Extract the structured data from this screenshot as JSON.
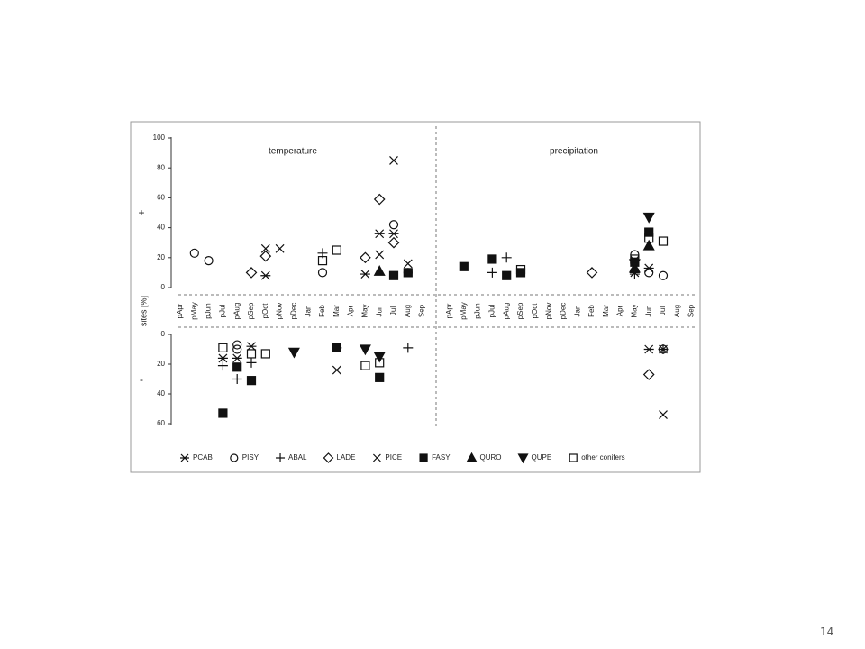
{
  "chart_data": {
    "type": "scatter",
    "ylabel": "sites [%]",
    "categories": [
      "pApr",
      "pMay",
      "pJun",
      "pJul",
      "pAug",
      "pSep",
      "pOct",
      "pNov",
      "pDec",
      "Jan",
      "Feb",
      "Mar",
      "Apr",
      "May",
      "Jun",
      "Jul",
      "Aug",
      "Sep"
    ],
    "panels": [
      {
        "title": "temperature"
      },
      {
        "title": "precipitation"
      }
    ],
    "halves": [
      {
        "label": "+",
        "ylim": [
          0,
          100
        ],
        "yticks": [
          0,
          20,
          40,
          60,
          80,
          100
        ]
      },
      {
        "label": "-",
        "ylim": [
          0,
          60
        ],
        "yticks": [
          0,
          20,
          40,
          60
        ]
      }
    ],
    "series": [
      {
        "name": "PCAB",
        "marker": "asterisk",
        "points": [
          {
            "panel": 0,
            "half": 0,
            "x": "pOct",
            "y": 8
          },
          {
            "panel": 0,
            "half": 0,
            "x": "May",
            "y": 9
          },
          {
            "panel": 0,
            "half": 0,
            "x": "Jun",
            "y": 36
          },
          {
            "panel": 0,
            "half": 0,
            "x": "Jul",
            "y": 36
          },
          {
            "panel": 0,
            "half": 1,
            "x": "pJul",
            "y": 16
          },
          {
            "panel": 0,
            "half": 1,
            "x": "pAug",
            "y": 16
          },
          {
            "panel": 0,
            "half": 1,
            "x": "pSep",
            "y": 8
          },
          {
            "panel": 0,
            "half": 1,
            "x": "Mar",
            "y": 9
          },
          {
            "panel": 1,
            "half": 0,
            "x": "May",
            "y": 10
          },
          {
            "panel": 1,
            "half": 0,
            "x": "Jun",
            "y": 13
          },
          {
            "panel": 1,
            "half": 1,
            "x": "Jun",
            "y": 10
          },
          {
            "panel": 1,
            "half": 1,
            "x": "Jul",
            "y": 10
          }
        ]
      },
      {
        "name": "PISY",
        "marker": "circle",
        "points": [
          {
            "panel": 0,
            "half": 0,
            "x": "pMay",
            "y": 23
          },
          {
            "panel": 0,
            "half": 0,
            "x": "pJun",
            "y": 18
          },
          {
            "panel": 0,
            "half": 0,
            "x": "Feb",
            "y": 10
          },
          {
            "panel": 0,
            "half": 0,
            "x": "Jul",
            "y": 42
          },
          {
            "panel": 0,
            "half": 0,
            "x": "Aug",
            "y": 10
          },
          {
            "panel": 0,
            "half": 1,
            "x": "pAug",
            "y": 7
          },
          {
            "panel": 0,
            "half": 1,
            "x": "pAug",
            "y": 10
          },
          {
            "panel": 1,
            "half": 0,
            "x": "May",
            "y": 22
          },
          {
            "panel": 1,
            "half": 0,
            "x": "Jun",
            "y": 10
          },
          {
            "panel": 1,
            "half": 0,
            "x": "Jul",
            "y": 8
          },
          {
            "panel": 1,
            "half": 1,
            "x": "Jul",
            "y": 10
          }
        ]
      },
      {
        "name": "ABAL",
        "marker": "plus",
        "points": [
          {
            "panel": 0,
            "half": 0,
            "x": "Feb",
            "y": 23
          },
          {
            "panel": 0,
            "half": 1,
            "x": "pJul",
            "y": 21
          },
          {
            "panel": 0,
            "half": 1,
            "x": "pAug",
            "y": 30
          },
          {
            "panel": 0,
            "half": 1,
            "x": "pSep",
            "y": 19
          },
          {
            "panel": 0,
            "half": 1,
            "x": "Aug",
            "y": 9
          },
          {
            "panel": 1,
            "half": 0,
            "x": "pJul",
            "y": 10
          },
          {
            "panel": 1,
            "half": 0,
            "x": "pAug",
            "y": 20
          },
          {
            "panel": 1,
            "half": 0,
            "x": "May",
            "y": 9
          },
          {
            "panel": 1,
            "half": 1,
            "x": "Jul",
            "y": 10
          }
        ]
      },
      {
        "name": "LADE",
        "marker": "diamond",
        "points": [
          {
            "panel": 0,
            "half": 0,
            "x": "pSep",
            "y": 10
          },
          {
            "panel": 0,
            "half": 0,
            "x": "pOct",
            "y": 21
          },
          {
            "panel": 0,
            "half": 0,
            "x": "May",
            "y": 20
          },
          {
            "panel": 0,
            "half": 0,
            "x": "Jun",
            "y": 59
          },
          {
            "panel": 0,
            "half": 0,
            "x": "Jul",
            "y": 30
          },
          {
            "panel": 1,
            "half": 0,
            "x": "Feb",
            "y": 10
          },
          {
            "panel": 1,
            "half": 1,
            "x": "Jun",
            "y": 27
          }
        ]
      },
      {
        "name": "PICE",
        "marker": "cross",
        "points": [
          {
            "panel": 0,
            "half": 0,
            "x": "pOct",
            "y": 26
          },
          {
            "panel": 0,
            "half": 0,
            "x": "pNov",
            "y": 26
          },
          {
            "panel": 0,
            "half": 0,
            "x": "Jun",
            "y": 22
          },
          {
            "panel": 0,
            "half": 0,
            "x": "Jul",
            "y": 85
          },
          {
            "panel": 0,
            "half": 0,
            "x": "Aug",
            "y": 16
          },
          {
            "panel": 0,
            "half": 1,
            "x": "Mar",
            "y": 24
          },
          {
            "panel": 1,
            "half": 1,
            "x": "Jul",
            "y": 54
          }
        ]
      },
      {
        "name": "FASY",
        "marker": "square-filled",
        "points": [
          {
            "panel": 0,
            "half": 0,
            "x": "Jul",
            "y": 8
          },
          {
            "panel": 0,
            "half": 0,
            "x": "Aug",
            "y": 10
          },
          {
            "panel": 0,
            "half": 1,
            "x": "pJul",
            "y": 53
          },
          {
            "panel": 0,
            "half": 1,
            "x": "pAug",
            "y": 22
          },
          {
            "panel": 0,
            "half": 1,
            "x": "pSep",
            "y": 31
          },
          {
            "panel": 0,
            "half": 1,
            "x": "Mar",
            "y": 9
          },
          {
            "panel": 0,
            "half": 1,
            "x": "Jun",
            "y": 29
          },
          {
            "panel": 1,
            "half": 0,
            "x": "pMay",
            "y": 14
          },
          {
            "panel": 1,
            "half": 0,
            "x": "pJul",
            "y": 19
          },
          {
            "panel": 1,
            "half": 0,
            "x": "pAug",
            "y": 8
          },
          {
            "panel": 1,
            "half": 0,
            "x": "pSep",
            "y": 10
          },
          {
            "panel": 1,
            "half": 0,
            "x": "May",
            "y": 17
          },
          {
            "panel": 1,
            "half": 0,
            "x": "Jun",
            "y": 37
          }
        ]
      },
      {
        "name": "QURO",
        "marker": "triangle-up",
        "points": [
          {
            "panel": 0,
            "half": 0,
            "x": "Jun",
            "y": 11
          },
          {
            "panel": 1,
            "half": 0,
            "x": "May",
            "y": 13
          },
          {
            "panel": 1,
            "half": 0,
            "x": "Jun",
            "y": 28
          }
        ]
      },
      {
        "name": "QUPE",
        "marker": "triangle-down",
        "points": [
          {
            "panel": 0,
            "half": 1,
            "x": "pDec",
            "y": 12
          },
          {
            "panel": 0,
            "half": 1,
            "x": "May",
            "y": 10
          },
          {
            "panel": 0,
            "half": 1,
            "x": "Jun",
            "y": 15
          },
          {
            "panel": 1,
            "half": 0,
            "x": "May",
            "y": 16
          },
          {
            "panel": 1,
            "half": 0,
            "x": "Jun",
            "y": 47
          }
        ]
      },
      {
        "name": "other conifers",
        "marker": "square",
        "points": [
          {
            "panel": 0,
            "half": 0,
            "x": "Feb",
            "y": 18
          },
          {
            "panel": 0,
            "half": 0,
            "x": "Mar",
            "y": 25
          },
          {
            "panel": 0,
            "half": 1,
            "x": "pJul",
            "y": 9
          },
          {
            "panel": 0,
            "half": 1,
            "x": "pSep",
            "y": 13
          },
          {
            "panel": 0,
            "half": 1,
            "x": "pOct",
            "y": 13
          },
          {
            "panel": 0,
            "half": 1,
            "x": "May",
            "y": 21
          },
          {
            "panel": 0,
            "half": 1,
            "x": "Jun",
            "y": 19
          },
          {
            "panel": 1,
            "half": 0,
            "x": "pSep",
            "y": 12
          },
          {
            "panel": 1,
            "half": 0,
            "x": "May",
            "y": 19
          },
          {
            "panel": 1,
            "half": 0,
            "x": "Jun",
            "y": 33
          },
          {
            "panel": 1,
            "half": 0,
            "x": "Jul",
            "y": 31
          }
        ]
      }
    ]
  },
  "page_number": "14"
}
